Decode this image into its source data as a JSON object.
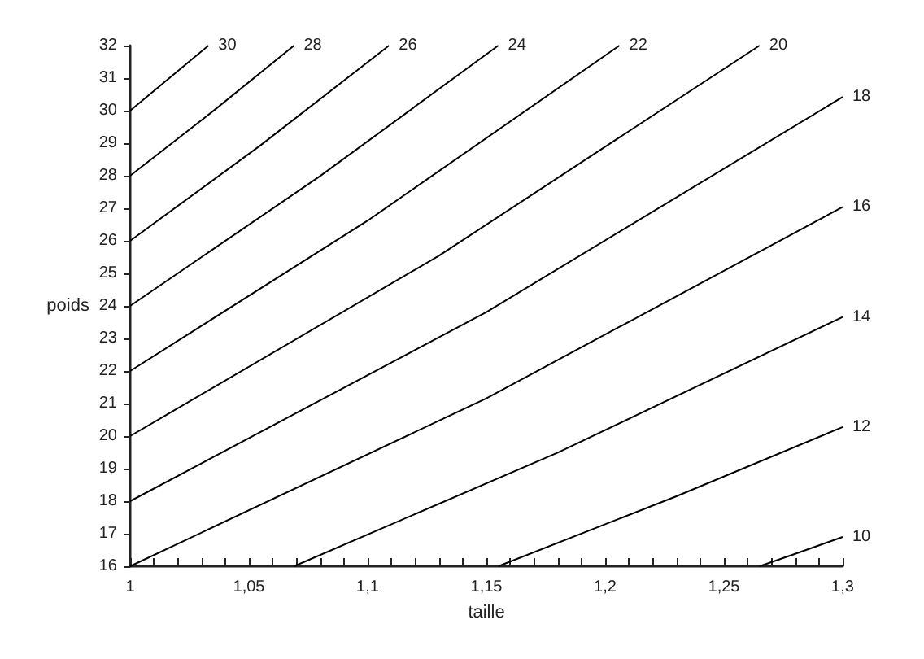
{
  "chart_data": {
    "type": "line",
    "xlabel": "taille",
    "ylabel": "poids",
    "marker": "none",
    "line_style": "solid",
    "grid": false,
    "xlim": [
      1,
      1.3
    ],
    "ylim": [
      16,
      32
    ],
    "xticks": [
      1,
      {
        "value": 1.01,
        "label": null
      },
      {
        "value": 1.02,
        "label": null
      },
      {
        "value": 1.03,
        "label": null
      },
      {
        "value": 1.04,
        "label": null
      },
      {
        "value": 1.05,
        "label": "1,05"
      },
      {
        "value": 1.06,
        "label": null
      },
      {
        "value": 1.07,
        "label": null
      },
      {
        "value": 1.08,
        "label": null
      },
      {
        "value": 1.09,
        "label": null
      },
      {
        "value": 1.1,
        "label": "1,1"
      },
      {
        "value": 1.11,
        "label": null
      },
      {
        "value": 1.12,
        "label": null
      },
      {
        "value": 1.13,
        "label": null
      },
      {
        "value": 1.14,
        "label": null
      },
      {
        "value": 1.15,
        "label": "1,15"
      },
      {
        "value": 1.16,
        "label": null
      },
      {
        "value": 1.17,
        "label": null
      },
      {
        "value": 1.18,
        "label": null
      },
      {
        "value": 1.19,
        "label": null
      },
      {
        "value": 1.2,
        "label": "1,2"
      },
      {
        "value": 1.21,
        "label": null
      },
      {
        "value": 1.22,
        "label": null
      },
      {
        "value": 1.23,
        "label": null
      },
      {
        "value": 1.24,
        "label": null
      },
      {
        "value": 1.25,
        "label": "1,25"
      },
      {
        "value": 1.26,
        "label": null
      },
      {
        "value": 1.27,
        "label": null
      },
      {
        "value": 1.28,
        "label": null
      },
      {
        "value": 1.29,
        "label": null
      },
      {
        "value": 1.3,
        "label": "1,3"
      }
    ],
    "yticks": [
      16,
      17,
      18,
      19,
      20,
      21,
      22,
      23,
      24,
      25,
      26,
      27,
      28,
      29,
      30,
      31,
      32
    ],
    "series": [
      {
        "name": "10",
        "color": "#000000",
        "x": [
          1.265,
          1.28,
          1.3
        ],
        "values": [
          16,
          16.38,
          16.9
        ]
      },
      {
        "name": "12",
        "color": "#000000",
        "x": [
          1.155,
          1.23,
          1.3
        ],
        "values": [
          16,
          18.15,
          20.28
        ]
      },
      {
        "name": "14",
        "color": "#000000",
        "x": [
          1.069,
          1.18,
          1.3
        ],
        "values": [
          16,
          19.49,
          23.66
        ]
      },
      {
        "name": "16",
        "color": "#000000",
        "x": [
          1,
          1.15,
          1.3
        ],
        "values": [
          16,
          21.16,
          27.04
        ]
      },
      {
        "name": "18",
        "color": "#000000",
        "x": [
          1,
          1.15,
          1.3
        ],
        "values": [
          18,
          23.81,
          30.42
        ]
      },
      {
        "name": "20",
        "color": "#000000",
        "x": [
          1,
          1.13,
          1.265
        ],
        "values": [
          20,
          25.54,
          32
        ]
      },
      {
        "name": "22",
        "color": "#000000",
        "x": [
          1,
          1.1,
          1.206
        ],
        "values": [
          22,
          26.62,
          32
        ]
      },
      {
        "name": "24",
        "color": "#000000",
        "x": [
          1,
          1.08,
          1.155
        ],
        "values": [
          24,
          27.99,
          32
        ]
      },
      {
        "name": "26",
        "color": "#000000",
        "x": [
          1,
          1.055,
          1.109
        ],
        "values": [
          26,
          28.94,
          32
        ]
      },
      {
        "name": "28",
        "color": "#000000",
        "x": [
          1,
          1.035,
          1.069
        ],
        "values": [
          28,
          29.99,
          32
        ]
      },
      {
        "name": "30",
        "color": "#000000",
        "x": [
          1,
          1.017,
          1.033
        ],
        "values": [
          30,
          31.03,
          32
        ]
      }
    ]
  }
}
